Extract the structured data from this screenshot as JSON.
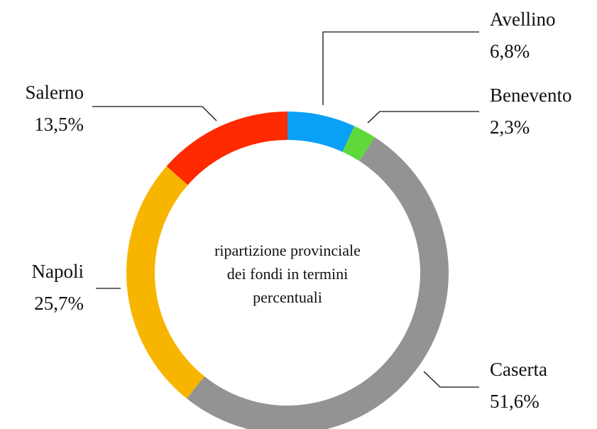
{
  "chart_data": {
    "type": "donut",
    "title": [
      "ripartizione provinciale",
      "dei fondi in termini",
      "percentuali"
    ],
    "categories": [
      "Avellino",
      "Benevento",
      "Caserta",
      "Napoli",
      "Salerno"
    ],
    "values": [
      6.8,
      2.3,
      51.6,
      25.7,
      13.5
    ],
    "value_labels": [
      "6,8%",
      "2,3%",
      "51,6%",
      "25,7%",
      "13,5%"
    ],
    "colors": [
      "#0aa0f5",
      "#5fd93a",
      "#939393",
      "#f7b500",
      "#ff2a00"
    ]
  }
}
